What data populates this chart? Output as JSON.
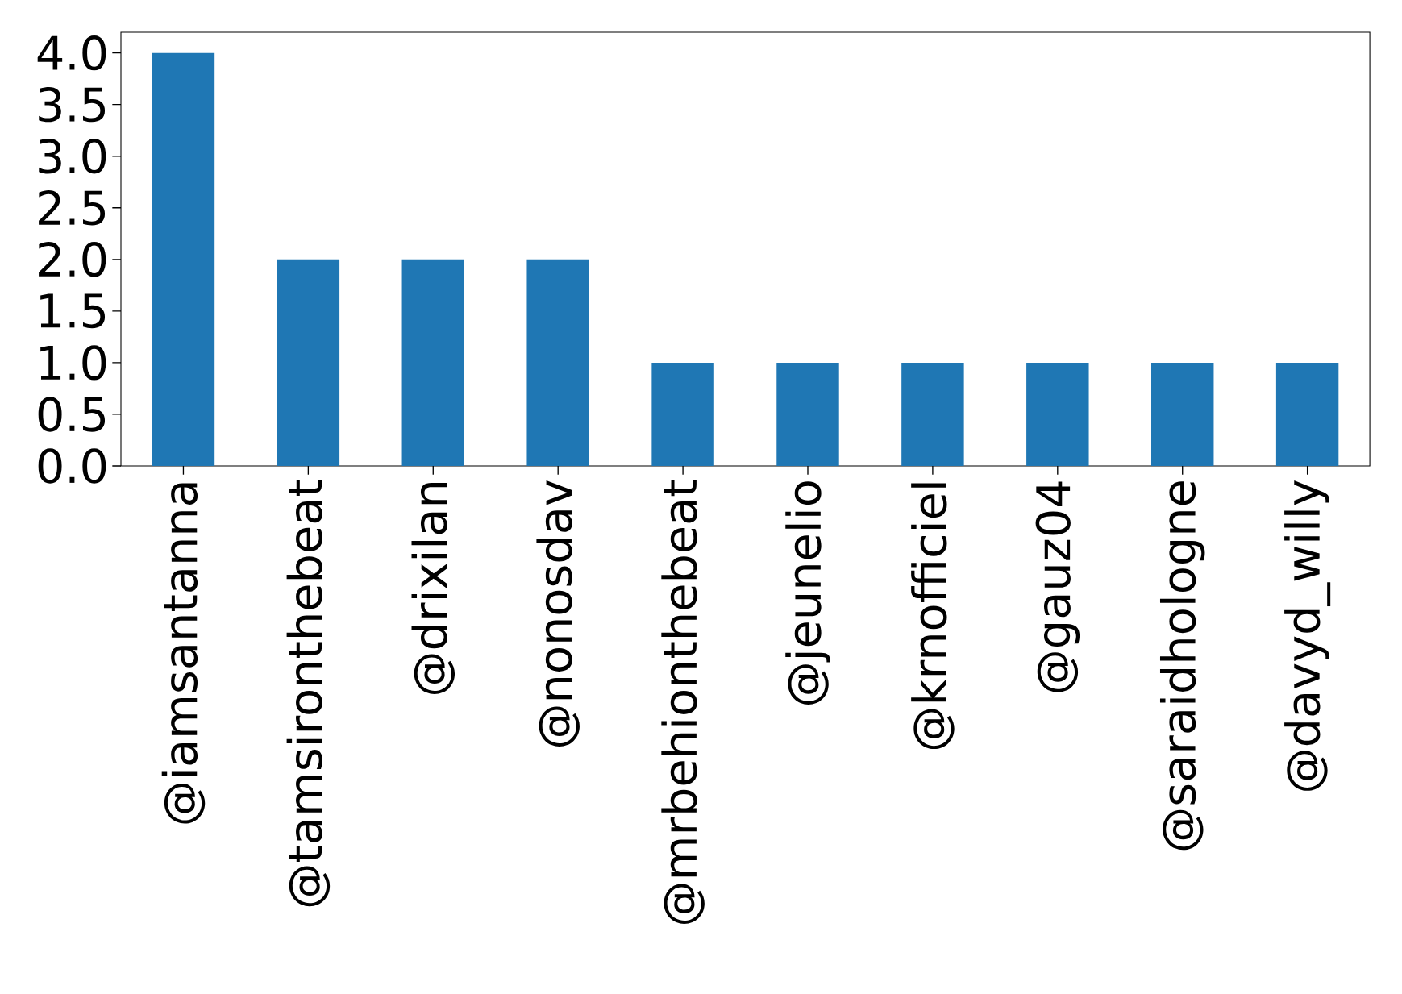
{
  "chart_data": {
    "type": "bar",
    "categories": [
      "@iamsantanna",
      "@tamsironthebeat",
      "@drixilan",
      "@nonosdav",
      "@mrbehionthebeat",
      "@jeunelio",
      "@krnofficiel",
      "@gauz04",
      "@saraidhologne",
      "@davyd_willy"
    ],
    "values": [
      4,
      2,
      2,
      2,
      1,
      1,
      1,
      1,
      1,
      1
    ],
    "color": "#1f77b4",
    "ylim": [
      0,
      4.2
    ],
    "yticks": [
      {
        "value": 0,
        "label": "0.0"
      },
      {
        "value": 0.5,
        "label": "0.5"
      },
      {
        "value": 1,
        "label": "1.0"
      },
      {
        "value": 1.5,
        "label": "1.5"
      },
      {
        "value": 2,
        "label": "2.0"
      },
      {
        "value": 2.5,
        "label": "2.5"
      },
      {
        "value": 3,
        "label": "3.0"
      },
      {
        "value": 3.5,
        "label": "3.5"
      },
      {
        "value": 4,
        "label": "4.0"
      }
    ]
  }
}
